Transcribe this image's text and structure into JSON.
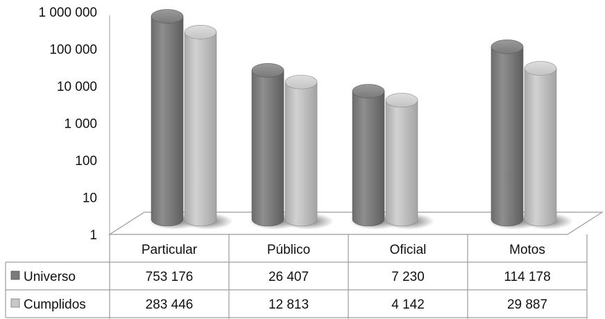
{
  "chart_data": {
    "type": "bar",
    "style": "3d-cylinder",
    "scale": "log",
    "ylim": [
      1,
      1000000
    ],
    "y_ticks": [
      "1",
      "10",
      "100",
      "1 000",
      "10 000",
      "100 000",
      "1 000 000"
    ],
    "categories": [
      "Particular",
      "Público",
      "Oficial",
      "Motos"
    ],
    "series": [
      {
        "name": "Universo",
        "color": "#7a7a7a",
        "values": [
          753176,
          26407,
          7230,
          114178
        ],
        "labels": [
          "753 176",
          "26 407",
          "7 230",
          "114 178"
        ]
      },
      {
        "name": "Cumplidos",
        "color": "#bdbdbd",
        "values": [
          283446,
          12813,
          4142,
          29887
        ],
        "labels": [
          "283 446",
          "12 813",
          "4 142",
          "29 887"
        ]
      }
    ],
    "data_table": true,
    "grid": false
  }
}
